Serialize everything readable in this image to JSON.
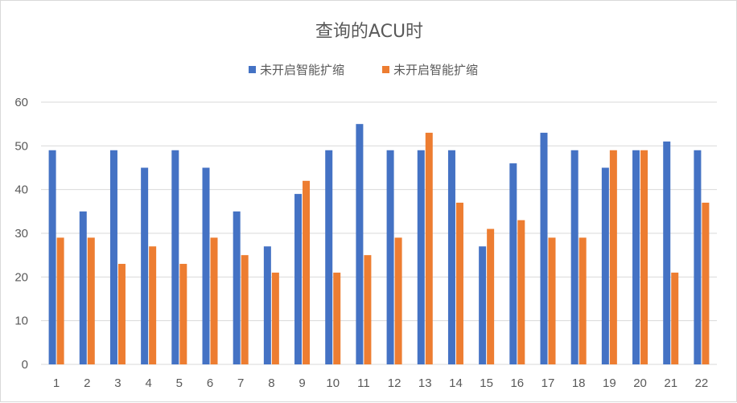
{
  "chart_data": {
    "type": "bar",
    "title": "查询的ACU时",
    "xlabel": "",
    "ylabel": "",
    "ylim": [
      0,
      60
    ],
    "yticks": [
      0,
      10,
      20,
      30,
      40,
      50,
      60
    ],
    "grid": true,
    "legend_position": "top",
    "categories": [
      "1",
      "2",
      "3",
      "4",
      "5",
      "6",
      "7",
      "8",
      "9",
      "10",
      "11",
      "12",
      "13",
      "14",
      "15",
      "16",
      "17",
      "18",
      "19",
      "20",
      "21",
      "22"
    ],
    "series": [
      {
        "name": "未开启智能扩缩",
        "color": "#4472c4",
        "values": [
          49,
          35,
          49,
          45,
          49,
          45,
          35,
          27,
          39,
          49,
          55,
          49,
          49,
          49,
          27,
          46,
          53,
          49,
          45,
          49,
          51,
          49
        ]
      },
      {
        "name": "未开启智能扩缩",
        "color": "#ed7d31",
        "values": [
          29,
          29,
          23,
          27,
          23,
          29,
          25,
          21,
          42,
          21,
          25,
          29,
          53,
          37,
          31,
          33,
          29,
          29,
          49,
          49,
          21,
          37
        ]
      }
    ]
  }
}
